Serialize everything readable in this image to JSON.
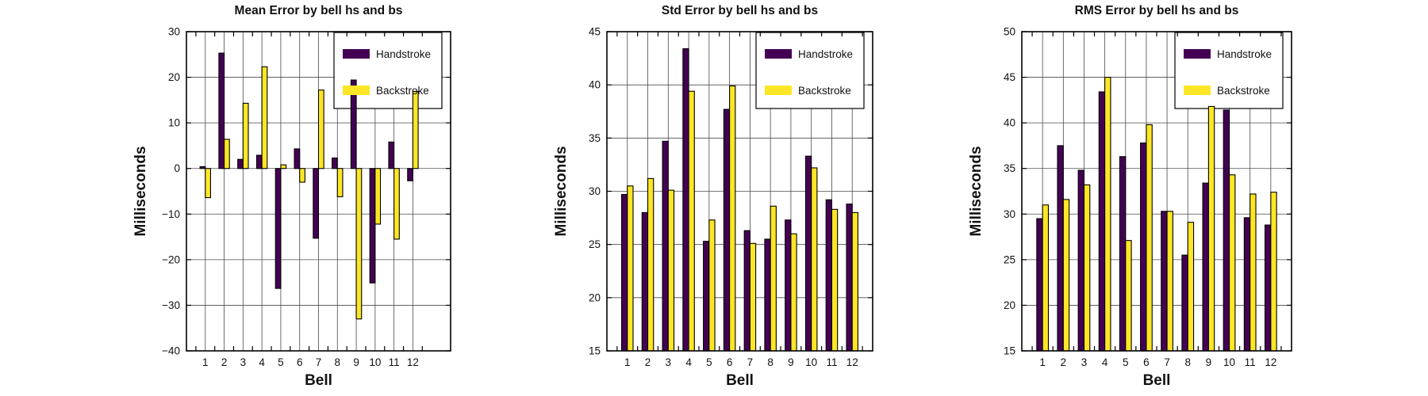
{
  "figure": {
    "background": "#ffffff",
    "description": "Three grouped bar charts of bell striking errors"
  },
  "series_colors": {
    "handstroke": "#440154",
    "backstroke": "#FCE625"
  },
  "legend": {
    "entries": [
      "Handstroke",
      "Backstroke"
    ],
    "position": "top-right"
  },
  "chart_data": [
    {
      "type": "bar",
      "key": "mean-error",
      "title": "Mean Error by bell hs and bs",
      "xlabel": "Bell",
      "ylabel": "Milliseconds",
      "categories": [
        "1",
        "2",
        "3",
        "4",
        "5",
        "6",
        "7",
        "8",
        "9",
        "10",
        "11",
        "12"
      ],
      "series": [
        {
          "name": "Handstroke",
          "color": "#440154",
          "values": [
            0.4,
            25.3,
            2.0,
            2.9,
            -26.3,
            4.3,
            -15.3,
            2.3,
            19.4,
            -25.1,
            5.8,
            -2.7
          ]
        },
        {
          "name": "Backstroke",
          "color": "#FCE625",
          "values": [
            -6.4,
            6.4,
            14.3,
            22.3,
            0.8,
            -3.0,
            17.2,
            -6.2,
            -33.0,
            -12.2,
            -15.5,
            16.9
          ]
        }
      ],
      "ylim": [
        -40,
        30
      ],
      "ytick_step": 10,
      "xlim": [
        0,
        14
      ],
      "baseline": 0,
      "grid": true,
      "legend_position": "top-right"
    },
    {
      "type": "bar",
      "key": "std-error",
      "title": "Std Error by bell hs and bs",
      "xlabel": "Bell",
      "ylabel": "Milliseconds",
      "categories": [
        "1",
        "2",
        "3",
        "4",
        "5",
        "6",
        "7",
        "8",
        "9",
        "10",
        "11",
        "12"
      ],
      "series": [
        {
          "name": "Handstroke",
          "color": "#440154",
          "values": [
            29.7,
            28.0,
            34.7,
            43.4,
            25.3,
            37.7,
            26.3,
            25.5,
            27.3,
            33.3,
            29.2,
            28.8
          ]
        },
        {
          "name": "Backstroke",
          "color": "#FCE625",
          "values": [
            30.5,
            31.2,
            30.1,
            39.4,
            27.3,
            39.9,
            25.1,
            28.6,
            26.0,
            32.2,
            28.3,
            28.0
          ]
        }
      ],
      "ylim": [
        15,
        45
      ],
      "ytick_step": 5,
      "xlim": [
        0,
        13
      ],
      "baseline": 15,
      "grid": true,
      "legend_position": "top-right"
    },
    {
      "type": "bar",
      "key": "rms-error",
      "title": "RMS Error by bell hs and bs",
      "xlabel": "Bell",
      "ylabel": "Milliseconds",
      "categories": [
        "1",
        "2",
        "3",
        "4",
        "5",
        "6",
        "7",
        "8",
        "9",
        "10",
        "11",
        "12"
      ],
      "series": [
        {
          "name": "Handstroke",
          "color": "#440154",
          "values": [
            29.5,
            37.5,
            34.8,
            43.4,
            36.3,
            37.8,
            30.3,
            25.5,
            33.4,
            41.4,
            29.6,
            28.8
          ]
        },
        {
          "name": "Backstroke",
          "color": "#FCE625",
          "values": [
            31.0,
            31.6,
            33.2,
            45.0,
            27.1,
            39.8,
            30.3,
            29.1,
            41.8,
            34.3,
            32.2,
            32.4
          ]
        }
      ],
      "ylim": [
        15,
        50
      ],
      "ytick_step": 5,
      "xlim": [
        0,
        13
      ],
      "baseline": 15,
      "grid": true,
      "legend_position": "top-right"
    }
  ]
}
